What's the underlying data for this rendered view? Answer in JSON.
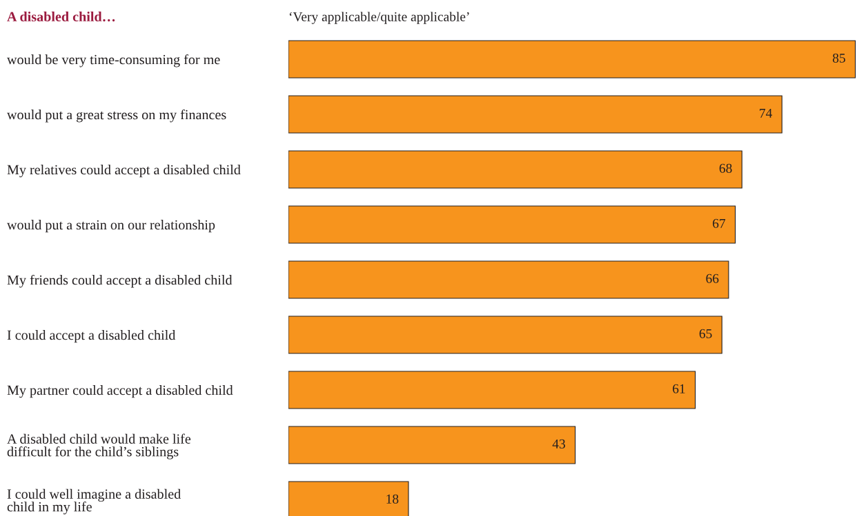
{
  "chart_data": {
    "type": "bar",
    "orientation": "horizontal",
    "title": "A disabled child…",
    "subtitle": "‘Very applicable/quite applicable’",
    "categories": [
      "would be very time-consuming for me",
      "would put a great stress on my finances",
      "My relatives could accept a disabled child",
      "would put a strain on our relationship",
      "My friends could accept a disabled child",
      "I could accept a disabled child",
      "My partner could accept a disabled child",
      "A disabled child would make life\ndifficult for the child’s siblings",
      "I could well imagine a disabled\nchild in my life"
    ],
    "values": [
      85,
      74,
      68,
      67,
      66,
      65,
      61,
      43,
      18
    ],
    "color": "#f7941d",
    "data_labels": true
  }
}
